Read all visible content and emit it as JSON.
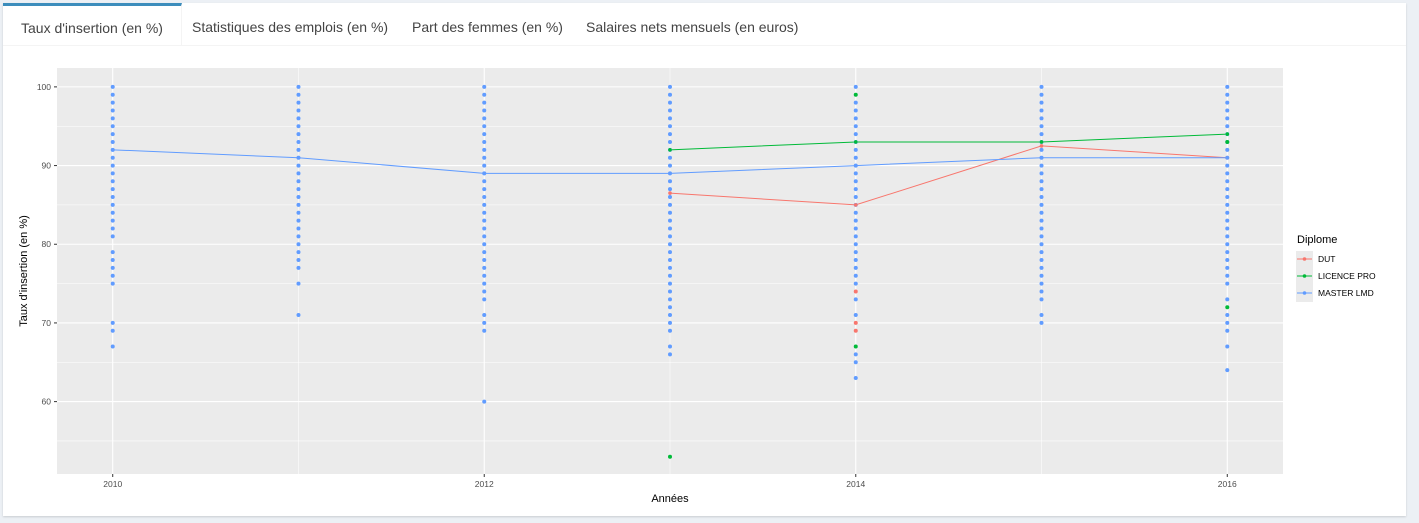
{
  "tabs": [
    {
      "label": "Taux d'insertion (en %)",
      "active": true
    },
    {
      "label": "Statistiques des emplois (en %)",
      "active": false
    },
    {
      "label": "Part des femmes (en %)",
      "active": false
    },
    {
      "label": "Salaires nets mensuels (en euros)",
      "active": false
    }
  ],
  "colors": {
    "panel": "#ebebeb",
    "grid": "#ffffff",
    "accent": "#3c8dbc"
  },
  "chart_data": {
    "type": "scatter",
    "xlabel": "Années",
    "ylabel": "Taux d'insertion (en %)",
    "xlim": [
      2009.7,
      2016.3
    ],
    "ylim": [
      50.8,
      102.4
    ],
    "xticks": [
      2010,
      2012,
      2014,
      2016
    ],
    "yticks": [
      60,
      70,
      80,
      90,
      100
    ],
    "grid": true,
    "legend_title": "Diplome",
    "legend_position": "right",
    "series": [
      {
        "name": "DUT",
        "color": "#f8766d",
        "line": [
          [
            2013,
            86.5
          ],
          [
            2014,
            85
          ],
          [
            2015,
            92.5
          ],
          [
            2016,
            91
          ]
        ],
        "points": [
          [
            2014,
            74
          ],
          [
            2014,
            70
          ],
          [
            2014,
            69
          ]
        ]
      },
      {
        "name": "LICENCE PRO",
        "color": "#00ba38",
        "line": [
          [
            2013,
            92
          ],
          [
            2014,
            93
          ],
          [
            2015,
            93
          ],
          [
            2016,
            94
          ]
        ],
        "points": [
          [
            2013,
            53
          ],
          [
            2014,
            99
          ],
          [
            2014,
            67
          ],
          [
            2016,
            72
          ],
          [
            2016,
            93
          ]
        ]
      },
      {
        "name": "MASTER LMD",
        "color": "#619cff",
        "line": [
          [
            2010,
            92
          ],
          [
            2011,
            91
          ],
          [
            2012,
            89
          ],
          [
            2013,
            89
          ],
          [
            2014,
            90
          ],
          [
            2015,
            91
          ],
          [
            2016,
            91
          ]
        ],
        "points_by_year": [
          {
            "x": 2010,
            "y": [
              100,
              99,
              98,
              97,
              96,
              95,
              94,
              93,
              92,
              91,
              90,
              89,
              88,
              87,
              86,
              85,
              84,
              83,
              82,
              81,
              79,
              78,
              77,
              76,
              75,
              70,
              69,
              67
            ]
          },
          {
            "x": 2011,
            "y": [
              100,
              99,
              98,
              97,
              96,
              95,
              94,
              93,
              92,
              91,
              90,
              89,
              88,
              87,
              86,
              85,
              84,
              83,
              82,
              81,
              80,
              79,
              78,
              77,
              75,
              71
            ]
          },
          {
            "x": 2012,
            "y": [
              100,
              99,
              98,
              97,
              96,
              95,
              94,
              93,
              92,
              91,
              90,
              89,
              88,
              87,
              86,
              85,
              84,
              83,
              82,
              81,
              80,
              79,
              78,
              77,
              76,
              75,
              74,
              73,
              71,
              70,
              69,
              60
            ]
          },
          {
            "x": 2013,
            "y": [
              100,
              99,
              98,
              97,
              96,
              95,
              94,
              93,
              92,
              91,
              90,
              89,
              88,
              87,
              86,
              85,
              84,
              83,
              82,
              81,
              80,
              79,
              78,
              77,
              76,
              75,
              74,
              73,
              72,
              71,
              70,
              69,
              67,
              66
            ]
          },
          {
            "x": 2014,
            "y": [
              100,
              98,
              97,
              96,
              95,
              94,
              93,
              92,
              91,
              90,
              89,
              88,
              87,
              86,
              85,
              84,
              83,
              82,
              81,
              80,
              79,
              78,
              77,
              76,
              75,
              73,
              71,
              66,
              65,
              63
            ]
          },
          {
            "x": 2015,
            "y": [
              100,
              99,
              98,
              97,
              96,
              95,
              94,
              93,
              92,
              91,
              90,
              89,
              88,
              87,
              86,
              85,
              84,
              83,
              82,
              81,
              80,
              79,
              78,
              77,
              76,
              75,
              74,
              73,
              71,
              70
            ]
          },
          {
            "x": 2016,
            "y": [
              100,
              99,
              98,
              97,
              96,
              95,
              94,
              93,
              92,
              91,
              90,
              89,
              88,
              87,
              86,
              85,
              84,
              83,
              82,
              81,
              80,
              79,
              78,
              77,
              76,
              75,
              73,
              71,
              70,
              69,
              67,
              64
            ]
          }
        ]
      }
    ]
  }
}
